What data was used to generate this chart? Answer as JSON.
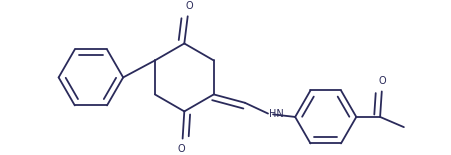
{
  "background_color": "#ffffff",
  "line_color": "#2a2a5a",
  "line_width": 1.3,
  "figsize": [
    4.51,
    1.55
  ],
  "dpi": 100,
  "xlim": [
    -0.05,
    4.46
  ],
  "ylim": [
    -0.05,
    1.6
  ]
}
